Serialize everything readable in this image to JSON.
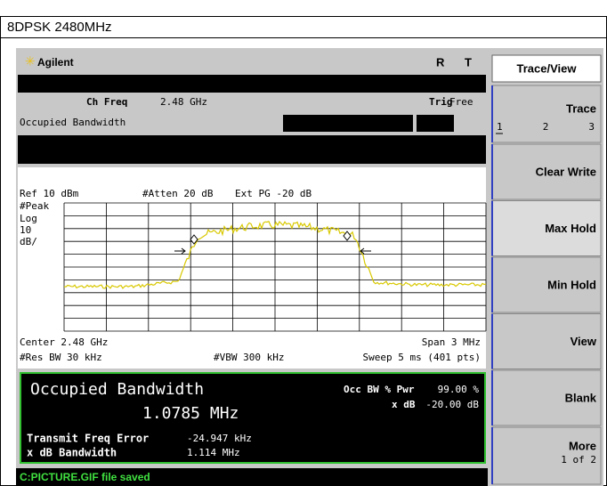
{
  "header": {
    "title": "8DPSK 2480MHz"
  },
  "analyzer": {
    "brand": "Agilent",
    "status": [
      "R",
      "T"
    ],
    "ch_freq_label": "Ch Freq",
    "ch_freq_value": "2.48 GHz",
    "trig_label": "Trig",
    "trig_value": "Free",
    "measurement": "Occupied Bandwidth",
    "ref": "Ref 10 dBm",
    "atten": "#Atten 20 dB",
    "ext_pg": "Ext PG -20 dB",
    "scale": [
      "#Peak",
      "Log",
      "10",
      "dB/"
    ],
    "center": "Center 2.48 GHz",
    "span": "Span 3 MHz",
    "res_bw": "#Res BW 30 kHz",
    "vbw": "#VBW 300 kHz",
    "sweep": "Sweep 5 ms (401 pts)",
    "results": {
      "title": "Occupied Bandwidth",
      "value": "1.0785 MHz",
      "occ_label": "Occ BW % Pwr",
      "occ_value": "99.00 %",
      "xdb_label": "x dB",
      "xdb_value": "-20.00 dB",
      "tfe_label": "Transmit Freq Error",
      "tfe_value": "-24.947 kHz",
      "xbw_label": "x dB Bandwidth",
      "xbw_value": "1.114 MHz"
    },
    "status_bar": "C:PICTURE.GIF file saved"
  },
  "softkeys": {
    "title": "Trace/View",
    "trace": {
      "label": "Trace",
      "options": [
        "1",
        "2",
        "3"
      ]
    },
    "keys": [
      "Clear Write",
      "Max Hold",
      "Min Hold",
      "View",
      "Blank"
    ],
    "more": {
      "label": "More",
      "sub": "1 of 2"
    }
  }
}
